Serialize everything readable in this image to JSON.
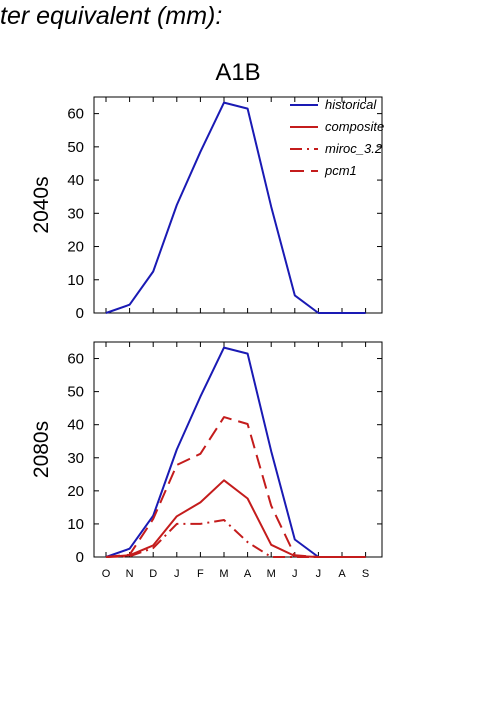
{
  "heading": "ter equivalent (mm):",
  "chart_data": {
    "type": "line",
    "title": "A1B",
    "categories": [
      "O",
      "N",
      "D",
      "J",
      "F",
      "M",
      "A",
      "M",
      "J",
      "J",
      "A",
      "S"
    ],
    "ylim": [
      0,
      65
    ],
    "yticks": [
      0,
      10,
      20,
      30,
      40,
      50,
      60
    ],
    "legend_position": "top-right",
    "panels": [
      {
        "label": "2040s",
        "series": [
          {
            "name": "historical",
            "color": "#1a1ab4",
            "dash": "solid",
            "values": [
              0,
              2.5,
              12.5,
              32.5,
              48.5,
              63.3,
              61.5,
              32,
              5.3,
              0,
              0,
              0
            ]
          }
        ]
      },
      {
        "label": "2080s",
        "series": [
          {
            "name": "historical",
            "color": "#1a1ab4",
            "dash": "solid",
            "values": [
              0,
              2.5,
              12.5,
              32.5,
              48.5,
              63.3,
              61.5,
              32,
              5.3,
              0,
              0,
              0
            ]
          },
          {
            "name": "composite",
            "color": "#c41c1c",
            "dash": "solid",
            "values": [
              0,
              0.5,
              3.5,
              12.3,
              16.5,
              23.2,
              17.7,
              3.7,
              0.3,
              0,
              0,
              0
            ]
          },
          {
            "name": "miroc_3.2",
            "color": "#c41c1c",
            "dash": "dashdot",
            "values": [
              0,
              0.2,
              2.7,
              10,
              10,
              11.2,
              4.5,
              0,
              0,
              0,
              0,
              0
            ]
          },
          {
            "name": "pcm1",
            "color": "#c41c1c",
            "dash": "dashed",
            "values": [
              0,
              0.7,
              11.5,
              27.8,
              31.2,
              42.3,
              40.2,
              15.5,
              0.5,
              0,
              0,
              0
            ]
          }
        ]
      }
    ],
    "legend": [
      {
        "name": "historical",
        "color": "#1a1ab4",
        "dash": "solid"
      },
      {
        "name": "composite",
        "color": "#c41c1c",
        "dash": "solid"
      },
      {
        "name": "miroc_3.2",
        "color": "#c41c1c",
        "dash": "dashdot"
      },
      {
        "name": "pcm1",
        "color": "#c41c1c",
        "dash": "dashed"
      }
    ]
  }
}
